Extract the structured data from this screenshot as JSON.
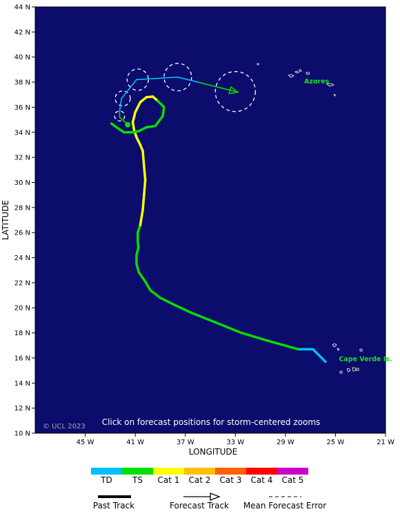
{
  "axes": {
    "xlabel": "LONGITUDE",
    "ylabel": "LATITUDE",
    "lon_range": [
      -49,
      -21
    ],
    "lat_range": [
      10,
      44
    ],
    "x_ticks": [
      {
        "value": -45,
        "label": "45 W"
      },
      {
        "value": -41,
        "label": "41 W"
      },
      {
        "value": -37,
        "label": "37 W"
      },
      {
        "value": -33,
        "label": "33 W"
      },
      {
        "value": -29,
        "label": "29 W"
      },
      {
        "value": -25,
        "label": "25 W"
      },
      {
        "value": -21,
        "label": "21 W"
      }
    ],
    "y_ticks": [
      {
        "value": 44,
        "label": "44 N"
      },
      {
        "value": 42,
        "label": "42 N"
      },
      {
        "value": 40,
        "label": "40 N"
      },
      {
        "value": 38,
        "label": "38 N"
      },
      {
        "value": 36,
        "label": "36 N"
      },
      {
        "value": 34,
        "label": "34 N"
      },
      {
        "value": 32,
        "label": "32 N"
      },
      {
        "value": 30,
        "label": "30 N"
      },
      {
        "value": 28,
        "label": "28 N"
      },
      {
        "value": 26,
        "label": "26 N"
      },
      {
        "value": 24,
        "label": "24 N"
      },
      {
        "value": 22,
        "label": "22 N"
      },
      {
        "value": 20,
        "label": "20 N"
      },
      {
        "value": 18,
        "label": "18 N"
      },
      {
        "value": 16,
        "label": "16 N"
      },
      {
        "value": 14,
        "label": "14 N"
      },
      {
        "value": 12,
        "label": "12 N"
      },
      {
        "value": 10,
        "label": "10 N"
      }
    ]
  },
  "map": {
    "background_color": "#0b0c6b",
    "copyright": "© UCL 2023",
    "note": "Click on forecast positions for storm-centered zooms",
    "places": [
      {
        "name": "Azores",
        "lon": -26.5,
        "lat": 37.9
      },
      {
        "name": "Cape Verde Is.",
        "lon": -22.6,
        "lat": 15.75
      }
    ]
  },
  "intensity_colors": {
    "TD": "#00bfff",
    "TS": "#00e000",
    "Cat 1": "#ffff00",
    "Cat 2": "#ffbf00",
    "Cat 3": "#ff6000",
    "Cat 4": "#ff0000",
    "Cat 5": "#cc00cc"
  },
  "past_track": [
    {
      "lon": -25.8,
      "lat": 15.7,
      "cat": "TD"
    },
    {
      "lon": -26.8,
      "lat": 16.7,
      "cat": "TD"
    },
    {
      "lon": -28.0,
      "lat": 16.7,
      "cat": "TS"
    },
    {
      "lon": -30.5,
      "lat": 17.4,
      "cat": "TS"
    },
    {
      "lon": -32.5,
      "lat": 18.0,
      "cat": "TS"
    },
    {
      "lon": -34.5,
      "lat": 18.8,
      "cat": "TS"
    },
    {
      "lon": -36.5,
      "lat": 19.6,
      "cat": "TS"
    },
    {
      "lon": -38.0,
      "lat": 20.3,
      "cat": "TS"
    },
    {
      "lon": -39.0,
      "lat": 20.8,
      "cat": "TS"
    },
    {
      "lon": -39.8,
      "lat": 21.4,
      "cat": "TS"
    },
    {
      "lon": -40.2,
      "lat": 22.1,
      "cat": "TS"
    },
    {
      "lon": -40.7,
      "lat": 22.8,
      "cat": "TS"
    },
    {
      "lon": -40.9,
      "lat": 23.5,
      "cat": "TS"
    },
    {
      "lon": -40.9,
      "lat": 24.2,
      "cat": "TS"
    },
    {
      "lon": -40.75,
      "lat": 24.8,
      "cat": "TS"
    },
    {
      "lon": -40.8,
      "lat": 25.3,
      "cat": "TS"
    },
    {
      "lon": -40.8,
      "lat": 26.0,
      "cat": "TS"
    },
    {
      "lon": -40.6,
      "lat": 26.6,
      "cat": "Cat 1"
    },
    {
      "lon": -40.4,
      "lat": 27.8,
      "cat": "Cat 1"
    },
    {
      "lon": -40.3,
      "lat": 29.0,
      "cat": "Cat 1"
    },
    {
      "lon": -40.2,
      "lat": 30.2,
      "cat": "Cat 1"
    },
    {
      "lon": -40.3,
      "lat": 31.3,
      "cat": "Cat 1"
    },
    {
      "lon": -40.4,
      "lat": 32.5,
      "cat": "Cat 1"
    },
    {
      "lon": -40.6,
      "lat": 33.0,
      "cat": "Cat 1"
    },
    {
      "lon": -40.9,
      "lat": 33.6,
      "cat": "Cat 1"
    },
    {
      "lon": -41.1,
      "lat": 34.2,
      "cat": "Cat 1"
    },
    {
      "lon": -41.2,
      "lat": 34.8,
      "cat": "Cat 1"
    },
    {
      "lon": -41.0,
      "lat": 35.6,
      "cat": "Cat 1"
    },
    {
      "lon": -40.6,
      "lat": 36.4,
      "cat": "Cat 1"
    },
    {
      "lon": -40.1,
      "lat": 36.8,
      "cat": "Cat 1"
    },
    {
      "lon": -39.6,
      "lat": 36.85,
      "cat": "Cat 1"
    },
    {
      "lon": -39.2,
      "lat": 36.5,
      "cat": "TS"
    },
    {
      "lon": -38.7,
      "lat": 36.0,
      "cat": "TS"
    },
    {
      "lon": -38.8,
      "lat": 35.3,
      "cat": "TS"
    },
    {
      "lon": -39.4,
      "lat": 34.5,
      "cat": "TS"
    },
    {
      "lon": -40.1,
      "lat": 34.4,
      "cat": "TS"
    },
    {
      "lon": -40.7,
      "lat": 34.1,
      "cat": "TS"
    },
    {
      "lon": -41.2,
      "lat": 34.0,
      "cat": "TS"
    },
    {
      "lon": -41.9,
      "lat": 34.0,
      "cat": "TS"
    },
    {
      "lon": -42.5,
      "lat": 34.4,
      "cat": "TS"
    },
    {
      "lon": -42.9,
      "lat": 34.7,
      "cat": "TS"
    }
  ],
  "current_position": {
    "lon": -41.6,
    "lat": 34.6
  },
  "forecast_track": [
    {
      "lon": -41.6,
      "lat": 34.6,
      "cat": "TS"
    },
    {
      "lon": -42.25,
      "lat": 35.2,
      "cat": "TS"
    },
    {
      "lon": -42.25,
      "lat": 35.7,
      "cat": "TD"
    },
    {
      "lon": -42.1,
      "lat": 36.7,
      "cat": "TD"
    },
    {
      "lon": -40.9,
      "lat": 38.2,
      "cat": "TD"
    },
    {
      "lon": -37.6,
      "lat": 38.4,
      "cat": "TD"
    },
    {
      "lon": -36.0,
      "lat": 38.0,
      "cat": "TS"
    },
    {
      "lon": -33.0,
      "lat": 37.25,
      "cat": "TS"
    }
  ],
  "error_circles": [
    {
      "lon": -42.25,
      "lat": 35.3,
      "radius_deg": 0.4
    },
    {
      "lon": -42.0,
      "lat": 36.7,
      "radius_deg": 0.6
    },
    {
      "lon": -40.8,
      "lat": 38.2,
      "radius_deg": 0.85
    },
    {
      "lon": -37.6,
      "lat": 38.4,
      "radius_deg": 1.1
    },
    {
      "lon": -33.0,
      "lat": 37.25,
      "radius_deg": 1.6
    }
  ],
  "legend": {
    "categories": [
      "TD",
      "TS",
      "Cat 1",
      "Cat 2",
      "Cat 3",
      "Cat 4",
      "Cat 5"
    ],
    "past_track_label": "Past Track",
    "forecast_track_label": "Forecast Track",
    "error_label": "Mean Forecast Error"
  }
}
